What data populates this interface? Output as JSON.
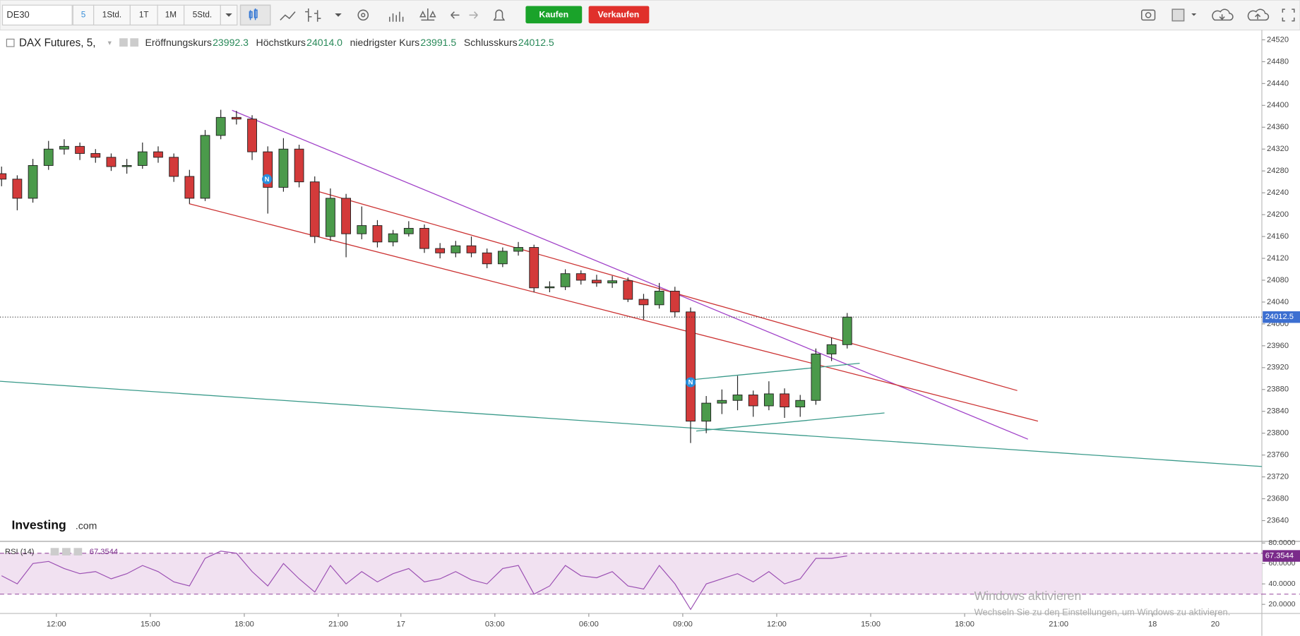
{
  "toolbar": {
    "symbol": "DE30",
    "intervals": [
      "5",
      "1Std.",
      "1T",
      "1M",
      "5Std."
    ],
    "buy": "Kaufen",
    "sell": "Verkaufen"
  },
  "chart_data": {
    "type": "candlestick",
    "title": "DAX Futures, 5,",
    "header": [
      {
        "label": "Eröffnungskurs",
        "value": "23992.3"
      },
      {
        "label": "Höchstkurs",
        "value": "24014.0"
      },
      {
        "label": "niedrigster Kurs",
        "value": "23991.5"
      },
      {
        "label": "Schlusskurs",
        "value": "24012.5"
      }
    ],
    "x": [
      -1.75,
      -1.25,
      -0.75,
      -0.25,
      0.25,
      0.75,
      1.25,
      1.75,
      2.25,
      2.75,
      3.25,
      3.75,
      4.25,
      4.75,
      5.25,
      5.75,
      6.25,
      6.75,
      7.25,
      7.75,
      8.25,
      8.75,
      9.25,
      9.75,
      10.25,
      10.75,
      11.25,
      11.75,
      12.25,
      12.75,
      13.25,
      13.75,
      14.25,
      14.75,
      15.25,
      15.75,
      16.25,
      16.75,
      17.25,
      17.75,
      18.25,
      18.75,
      19.25,
      19.75,
      20.25,
      20.75,
      21.25,
      21.75,
      22.25,
      22.75,
      23.25,
      23.75,
      24.25,
      24.75,
      25.25
    ],
    "open": [
      24275,
      24265,
      24230,
      24290,
      24320,
      24325,
      24312,
      24305,
      24288,
      24290,
      24315,
      24305,
      24270,
      24230,
      24345,
      24378,
      24375,
      24315,
      24250,
      24320,
      24260,
      24160,
      24230,
      24165,
      24180,
      24150,
      24165,
      24175,
      24138,
      24130,
      24143,
      24130,
      24110,
      24133,
      24140,
      24066,
      24068,
      24092,
      24080,
      24075,
      24079,
      24045,
      24035,
      24060,
      24022,
      23822,
      23855,
      23860,
      23870,
      23850,
      23872,
      23848,
      23860,
      23945,
      23962
    ],
    "high": [
      24288,
      24272,
      24302,
      24335,
      24338,
      24332,
      24320,
      24312,
      24302,
      24332,
      24325,
      24312,
      24282,
      24355,
      24392,
      24390,
      24382,
      24325,
      24340,
      24328,
      24270,
      24248,
      24238,
      24215,
      24190,
      24172,
      24188,
      24182,
      24148,
      24152,
      24160,
      24138,
      24140,
      24150,
      24145,
      24078,
      24100,
      24098,
      24090,
      24088,
      24085,
      24055,
      24075,
      24068,
      24030,
      23868,
      23880,
      23905,
      23878,
      23895,
      23882,
      23870,
      23955,
      23975,
      24020
    ],
    "low": [
      24252,
      24208,
      24222,
      24282,
      24310,
      24300,
      24295,
      24280,
      24275,
      24284,
      24295,
      24260,
      24220,
      24225,
      24338,
      24365,
      24300,
      24202,
      24242,
      24250,
      24148,
      24152,
      24122,
      24155,
      24140,
      24142,
      24160,
      24130,
      24120,
      24122,
      24122,
      24102,
      24104,
      24125,
      24058,
      24058,
      24062,
      24072,
      24068,
      24066,
      24040,
      24008,
      24028,
      24012,
      23782,
      23800,
      23835,
      23842,
      23830,
      23842,
      23828,
      23830,
      23852,
      23932,
      23955
    ],
    "close": [
      24265,
      24230,
      24290,
      24320,
      24325,
      24312,
      24305,
      24288,
      24290,
      24315,
      24305,
      24270,
      24230,
      24345,
      24378,
      24375,
      24315,
      24250,
      24320,
      24260,
      24160,
      24230,
      24165,
      24180,
      24150,
      24165,
      24175,
      24138,
      24130,
      24143,
      24130,
      24110,
      24133,
      24140,
      24066,
      24068,
      24092,
      24080,
      24075,
      24079,
      24045,
      24035,
      24060,
      24022,
      23822,
      23855,
      23860,
      23870,
      23850,
      23872,
      23848,
      23860,
      23945,
      23962,
      24012.5
    ],
    "up_color": "#4b9a4b",
    "down_color": "#d33a3a",
    "xlim": [
      -1.8,
      38.49
    ],
    "xticks": [
      {
        "value": 0,
        "label": "12:00"
      },
      {
        "value": 3,
        "label": "15:00"
      },
      {
        "value": 6,
        "label": "18:00"
      },
      {
        "value": 9,
        "label": "21:00"
      },
      {
        "value": 11,
        "label": "17"
      },
      {
        "value": 14,
        "label": "03:00"
      },
      {
        "value": 17,
        "label": "06:00"
      },
      {
        "value": 20,
        "label": "09:00"
      },
      {
        "value": 23,
        "label": "12:00"
      },
      {
        "value": 26,
        "label": "15:00"
      },
      {
        "value": 29,
        "label": "18:00"
      },
      {
        "value": 32,
        "label": "21:00"
      },
      {
        "value": 35,
        "label": "18"
      },
      {
        "value": 37,
        "label": "20"
      }
    ],
    "ylim": [
      23602,
      24538
    ],
    "yticks": [
      23640,
      23680,
      23720,
      23760,
      23800,
      23840,
      23880,
      23920,
      23960,
      24000,
      24040,
      24080,
      24120,
      24160,
      24200,
      24240,
      24280,
      24320,
      24360,
      24400,
      24440,
      24480,
      24520
    ],
    "trendlines": [
      {
        "color": "#a040c8",
        "x": [
          5.61,
          31.02
        ],
        "y": [
          24391,
          23789
        ]
      },
      {
        "color": "#cc3333",
        "x": [
          4.24,
          31.34
        ],
        "y": [
          24220,
          23822
        ]
      },
      {
        "color": "#cc3333",
        "x": [
          8.26,
          30.68
        ],
        "y": [
          24244,
          23878
        ]
      },
      {
        "color": "#3a9a8a",
        "x": [
          -1.8,
          38.49
        ],
        "y": [
          23895,
          23739
        ]
      },
      {
        "color": "#3a9a8a",
        "x": [
          20.3,
          25.65
        ],
        "y": [
          23898,
          23928
        ]
      },
      {
        "color": "#3a9a8a",
        "x": [
          20.43,
          26.44
        ],
        "y": [
          23804,
          23837
        ]
      }
    ],
    "rsi": {
      "label": "RSI (14)",
      "color": "#9b4fb3",
      "values": [
        48,
        40,
        60,
        62,
        55,
        50,
        52,
        45,
        50,
        58,
        52,
        42,
        38,
        65,
        72,
        70,
        52,
        38,
        60,
        45,
        32,
        58,
        40,
        52,
        42,
        50,
        55,
        42,
        45,
        52,
        44,
        40,
        55,
        58,
        30,
        38,
        58,
        48,
        46,
        52,
        38,
        35,
        58,
        40,
        15,
        40,
        45,
        50,
        42,
        52,
        40,
        45,
        65,
        65,
        67.3544
      ],
      "ylim": [
        11.1,
        81.6
      ],
      "yticks": [
        {
          "value": 20,
          "label": "20.0000"
        },
        {
          "value": 40,
          "label": "40.0000"
        },
        {
          "value": 60,
          "label": "60.0000"
        },
        {
          "value": 80,
          "label": "80.0000"
        }
      ],
      "bands": [
        30,
        70
      ]
    },
    "logo": {
      "brand": "Investing",
      "suffix": ".com"
    }
  },
  "watermark": {
    "title": "Windows aktivieren",
    "text": "Wechseln Sie zu den Einstellungen, um Windows zu aktivieren."
  }
}
